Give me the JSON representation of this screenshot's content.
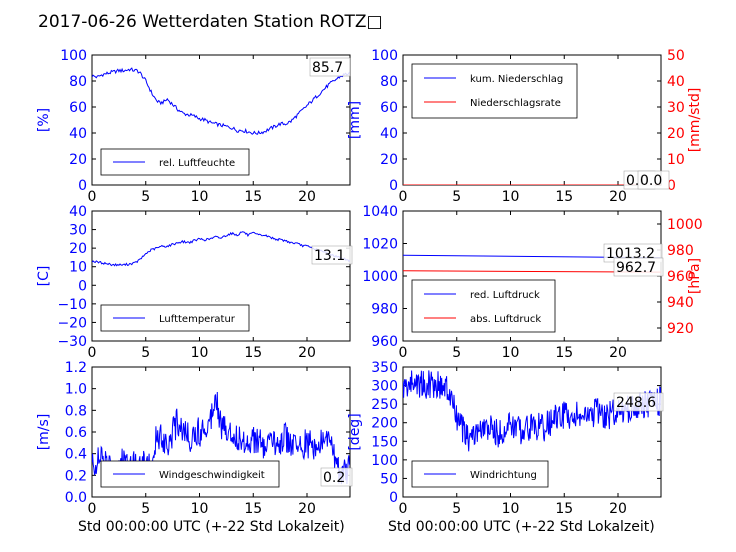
{
  "figure": {
    "title": "2017-06-26 Wetterdaten Station ROTZ□",
    "xlabel": "Std 00:00:00 UTC (+-22 Std Lokalzeit)"
  },
  "chart_data": [
    {
      "type": "line",
      "ylabel": "[%]",
      "xlim": [
        0,
        24
      ],
      "ylim": [
        0,
        100
      ],
      "xticks": [
        "0",
        "5",
        "10",
        "15",
        "20"
      ],
      "yticks": [
        "0",
        "20",
        "40",
        "60",
        "80",
        "100"
      ],
      "legend": {
        "placement": "lower-left",
        "entries": [
          "rel. Luftfeuchte"
        ]
      },
      "annotations": [
        "85.7"
      ],
      "series": [
        {
          "name": "rel. Luftfeuchte",
          "color": "#0000ff",
          "x": [
            0,
            0.5,
            1,
            1.5,
            2,
            2.5,
            3,
            3.5,
            4,
            4.2,
            4.5,
            5,
            5.3,
            5.6,
            6,
            6.3,
            6.7,
            7,
            7.5,
            8,
            8.5,
            9,
            9.5,
            10,
            10.5,
            11,
            11.5,
            12,
            12.5,
            13,
            13.5,
            14,
            14.5,
            15,
            15.5,
            16,
            16.5,
            17,
            17.5,
            18,
            18.5,
            19,
            19.5,
            20,
            20.5,
            21,
            21.5,
            22,
            22.5,
            23,
            23.5,
            24
          ],
          "y": [
            84,
            83,
            85,
            86,
            87,
            88,
            88,
            89,
            88,
            88,
            86,
            80,
            75,
            70,
            65,
            63,
            64,
            66,
            62,
            58,
            55,
            54,
            53,
            51,
            50,
            48,
            47,
            46,
            45,
            44,
            42,
            42,
            41,
            40,
            40,
            41,
            43,
            45,
            47,
            47,
            49,
            53,
            57,
            61,
            65,
            69,
            73,
            77,
            80,
            83,
            85,
            86
          ]
        }
      ]
    },
    {
      "type": "line",
      "ylabel": "[mm]",
      "ylabel_right": "[mm/std]",
      "xlim": [
        0,
        24
      ],
      "ylim": [
        0,
        100
      ],
      "ylim_right": [
        0,
        50
      ],
      "xticks": [
        "0",
        "5",
        "10",
        "15",
        "20"
      ],
      "yticks": [
        "0",
        "20",
        "40",
        "60",
        "80",
        "100"
      ],
      "yticks_right": [
        "0",
        "10",
        "20",
        "30",
        "40",
        "50"
      ],
      "legend": {
        "placement": "top-left",
        "entries": [
          "kum. Niederschlag",
          "Niederschlagsrate"
        ]
      },
      "annotations": [
        "0.0",
        "0.0"
      ],
      "series": [
        {
          "name": "kum. Niederschlag",
          "color": "#0000ff",
          "x": [
            0,
            24
          ],
          "y": [
            0,
            0
          ]
        },
        {
          "name": "Niederschlagsrate",
          "color": "#ff0000",
          "x": [
            0,
            24
          ],
          "y": [
            0,
            0
          ]
        }
      ]
    },
    {
      "type": "line",
      "ylabel": "[C]",
      "xlim": [
        0,
        24
      ],
      "ylim": [
        -30,
        40
      ],
      "xticks": [
        "0",
        "5",
        "10",
        "15",
        "20"
      ],
      "yticks": [
        "−30",
        "−20",
        "−10",
        "0",
        "10",
        "20",
        "30",
        "40"
      ],
      "legend": {
        "placement": "lower-left",
        "entries": [
          "Lufttemperatur"
        ]
      },
      "annotations": [
        "13.1"
      ],
      "series": [
        {
          "name": "Lufttemperatur",
          "color": "#0000ff",
          "x": [
            0,
            0.5,
            1,
            1.5,
            2,
            2.5,
            3,
            3.5,
            4,
            4.5,
            5,
            5.5,
            6,
            6.5,
            7,
            7.5,
            8,
            8.5,
            9,
            9.5,
            10,
            10.5,
            11,
            11.5,
            12,
            12.5,
            13,
            13.5,
            14,
            14.5,
            15,
            15.5,
            16,
            16.5,
            17,
            17.5,
            18,
            18.5,
            19,
            19.5,
            20,
            20.5,
            21,
            21.5,
            22,
            22.5,
            23,
            23.5,
            24
          ],
          "y": [
            13,
            12.5,
            12,
            11.5,
            11,
            11,
            11,
            11.5,
            12,
            14,
            17,
            19,
            20,
            21,
            21,
            22,
            23,
            23.5,
            23,
            24,
            25,
            24.5,
            25,
            26,
            25.5,
            27,
            28,
            27,
            29,
            27,
            28,
            27,
            27,
            26,
            25,
            24.5,
            24,
            23,
            22.5,
            21.5,
            21,
            20,
            19,
            18,
            17,
            16,
            15,
            14,
            13
          ]
        }
      ]
    },
    {
      "type": "line",
      "ylabel": "",
      "ylabel_right": "[hPa]",
      "xlim": [
        0,
        24
      ],
      "ylim": [
        950,
        1050
      ],
      "ylim_right": [
        910,
        1010
      ],
      "xticks": [
        "0",
        "5",
        "10",
        "15",
        "20"
      ],
      "yticks": [
        "960",
        "980",
        "1000",
        "1020",
        "1040"
      ],
      "yticks_right": [
        "920",
        "940",
        "960",
        "980",
        "1000"
      ],
      "legend": {
        "placement": "lower-left",
        "entries": [
          "red. Luftdruck",
          "abs. Luftdruck"
        ]
      },
      "annotations": [
        "1013.2",
        "962.7"
      ],
      "series": [
        {
          "name": "red. Luftdruck",
          "color": "#0000ff",
          "x": [
            0,
            3,
            6,
            9,
            12,
            15,
            17,
            19,
            21,
            22,
            23,
            24
          ],
          "y": [
            1016,
            1016,
            1015,
            1014.5,
            1013,
            1012,
            1011,
            1011,
            1011.5,
            1012.5,
            1013.5,
            1014
          ]
        },
        {
          "name": "abs. Luftdruck",
          "color": "#ff0000",
          "y_axis": "right",
          "x": [
            0,
            3,
            6,
            9,
            12,
            15,
            17,
            19,
            21,
            22,
            23,
            24
          ],
          "y": [
            964,
            964,
            963.5,
            963,
            962.5,
            962,
            961.5,
            961.5,
            962,
            962.5,
            963,
            963
          ]
        }
      ]
    },
    {
      "type": "line",
      "ylabel": "[m/s]",
      "xlim": [
        0,
        24
      ],
      "ylim": [
        0,
        1.2
      ],
      "xticks": [
        "0",
        "5",
        "10",
        "15",
        "20"
      ],
      "yticks": [
        "0.0",
        "0.2",
        "0.4",
        "0.6",
        "0.8",
        "1.0",
        "1.2"
      ],
      "legend": {
        "placement": "lower-left",
        "entries": [
          "Windgeschwindigkeit"
        ]
      },
      "annotations": [
        "0.2"
      ],
      "series": [
        {
          "name": "Windgeschwindigkeit",
          "color": "#0000ff",
          "x": [
            0,
            1,
            2,
            3,
            4,
            5,
            5.8,
            6,
            7,
            8,
            9,
            10,
            11,
            11.5,
            12,
            13,
            14,
            15,
            16,
            17,
            18,
            19,
            20,
            21,
            22,
            23,
            24
          ],
          "y": [
            0.3,
            0.35,
            0.25,
            0.35,
            0.3,
            0.3,
            0.3,
            0.6,
            0.5,
            0.7,
            0.55,
            0.6,
            0.7,
            1.0,
            0.65,
            0.6,
            0.5,
            0.55,
            0.45,
            0.5,
            0.55,
            0.45,
            0.5,
            0.45,
            0.55,
            0.25,
            0.25
          ]
        }
      ]
    },
    {
      "type": "line",
      "ylabel": "[deg]",
      "xlim": [
        0,
        24
      ],
      "ylim": [
        0,
        360
      ],
      "xticks": [
        "0",
        "5",
        "10",
        "15",
        "20"
      ],
      "yticks": [
        "0",
        "50",
        "100",
        "150",
        "200",
        "250",
        "300",
        "350"
      ],
      "legend": {
        "placement": "lower-left",
        "entries": [
          "Windrichtung"
        ]
      },
      "annotations": [
        "248.6"
      ],
      "series": [
        {
          "name": "Windrichtung",
          "color": "#0000ff",
          "x": [
            0,
            1,
            2,
            3,
            4,
            4.5,
            5,
            5.5,
            6,
            7,
            8,
            9,
            10,
            11,
            12,
            13,
            14,
            15,
            16,
            17,
            18,
            19,
            20,
            21,
            22,
            23,
            24
          ],
          "y": [
            300,
            320,
            310,
            315,
            300,
            270,
            220,
            190,
            160,
            180,
            190,
            175,
            200,
            185,
            200,
            190,
            215,
            225,
            230,
            215,
            235,
            225,
            240,
            245,
            250,
            260,
            265
          ]
        }
      ]
    }
  ]
}
